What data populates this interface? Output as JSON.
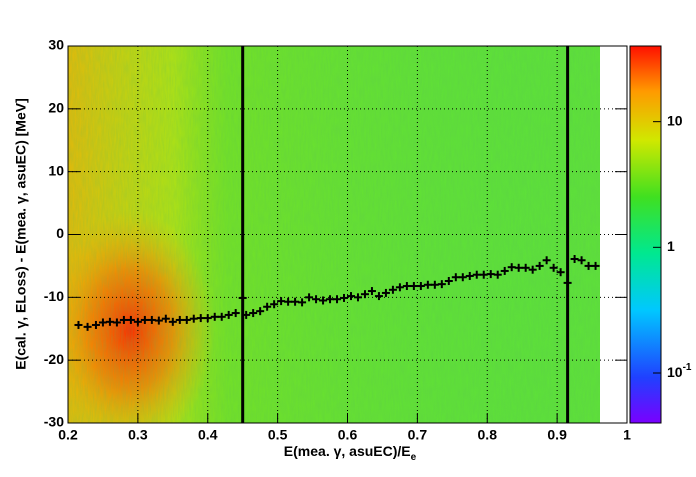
{
  "chart_data": {
    "type": "profile2d",
    "x_label": "E(mea. γ, asuEC)/E",
    "x_label_sub": "e",
    "y_label": "E(cal. γ, ELoss) - E(mea.  γ, asuEC) [MeV]",
    "xlim": [
      0.2,
      1.0
    ],
    "xticks": [
      0.2,
      0.3,
      0.4,
      0.5,
      0.6,
      0.7,
      0.8,
      0.9,
      1
    ],
    "ylim": [
      -30,
      30
    ],
    "yticks": [
      -30,
      -20,
      -10,
      0,
      10,
      20,
      30
    ],
    "zlim": [
      0.04,
      40
    ],
    "zscale": "log",
    "zticks": [
      {
        "value": 0.1,
        "label": "10",
        "exponent": "-1"
      },
      1,
      10
    ],
    "grid": true,
    "color": "#000000",
    "vertical_lines": [
      0.45,
      0.915
    ],
    "x": [
      0.215,
      0.228,
      0.24,
      0.25,
      0.26,
      0.27,
      0.28,
      0.29,
      0.3,
      0.31,
      0.32,
      0.33,
      0.34,
      0.35,
      0.36,
      0.37,
      0.38,
      0.39,
      0.4,
      0.41,
      0.42,
      0.43,
      0.44,
      0.45,
      0.455,
      0.465,
      0.475,
      0.485,
      0.495,
      0.505,
      0.515,
      0.525,
      0.535,
      0.545,
      0.555,
      0.565,
      0.575,
      0.585,
      0.595,
      0.605,
      0.615,
      0.625,
      0.635,
      0.645,
      0.655,
      0.665,
      0.675,
      0.685,
      0.695,
      0.705,
      0.715,
      0.725,
      0.735,
      0.745,
      0.755,
      0.765,
      0.775,
      0.785,
      0.795,
      0.805,
      0.815,
      0.825,
      0.835,
      0.845,
      0.855,
      0.865,
      0.875,
      0.885,
      0.895,
      0.905,
      0.915,
      0.925,
      0.935,
      0.945,
      0.955
    ],
    "values": [
      -14.4,
      -14.7,
      -14.4,
      -14.0,
      -13.9,
      -14.0,
      -13.6,
      -13.6,
      -13.9,
      -13.6,
      -13.6,
      -13.7,
      -13.4,
      -13.9,
      -13.6,
      -13.6,
      -13.4,
      -13.3,
      -13.3,
      -13.1,
      -13.1,
      -12.8,
      -12.5,
      -10.1,
      -12.8,
      -12.5,
      -12.2,
      -11.5,
      -11.1,
      -10.6,
      -10.7,
      -10.7,
      -10.8,
      -10.0,
      -10.3,
      -10.5,
      -10.3,
      -10.3,
      -10.1,
      -9.8,
      -10.0,
      -9.5,
      -9.0,
      -9.8,
      -9.3,
      -8.8,
      -8.4,
      -8.2,
      -8.2,
      -8.2,
      -8.0,
      -8.0,
      -7.9,
      -7.4,
      -6.8,
      -6.8,
      -6.6,
      -6.4,
      -6.4,
      -6.3,
      -6.4,
      -5.8,
      -5.2,
      -5.3,
      -5.3,
      -5.6,
      -5.0,
      -4.1,
      -5.3,
      -6.0,
      -7.7,
      -3.9,
      -4.1,
      -5.0,
      -5.0
    ]
  }
}
